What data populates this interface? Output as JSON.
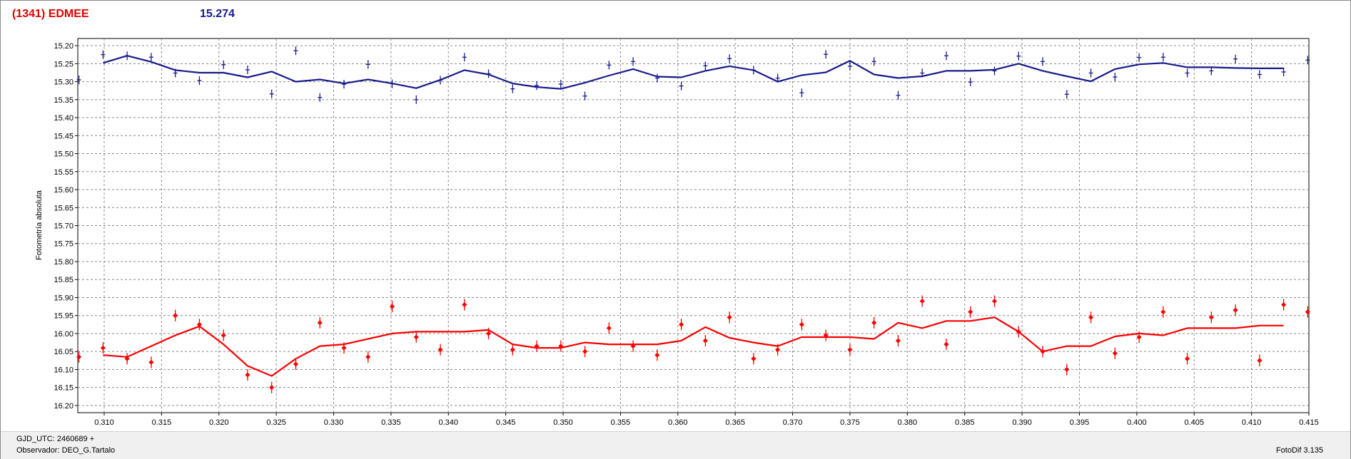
{
  "header": {
    "object_name": "(1341) EDMEE",
    "mean_magnitude": "15.274"
  },
  "footer": {
    "gjd": "GJD_UTC: 2460689 +",
    "observer": "Observador: DEO_G.Tartalo",
    "software": "FotoDif 3.135"
  },
  "colors": {
    "asteroid": "#1a1a8c",
    "comparison": "#ff0000",
    "object_title": "#e00000"
  },
  "chart_data": {
    "type": "scatter",
    "title": "",
    "xlabel": "",
    "ylabel": "Fotometría absoluta",
    "xlim": [
      0.3077,
      0.415
    ],
    "ylim": [
      16.22,
      15.18
    ],
    "y_inverted": true,
    "grid": true,
    "x_ticks": [
      "0.310",
      "0.315",
      "0.320",
      "0.325",
      "0.330",
      "0.335",
      "0.340",
      "0.345",
      "0.350",
      "0.355",
      "0.360",
      "0.365",
      "0.370",
      "0.375",
      "0.380",
      "0.385",
      "0.390",
      "0.395",
      "0.400",
      "0.405",
      "0.410",
      "0.415"
    ],
    "y_ticks": [
      "15.20",
      "15.25",
      "15.30",
      "15.35",
      "15.40",
      "15.45",
      "15.50",
      "15.55",
      "15.60",
      "15.65",
      "15.70",
      "15.75",
      "15.80",
      "15.85",
      "15.90",
      "15.95",
      "16.00",
      "16.05",
      "16.10",
      "16.15",
      "16.20"
    ],
    "series": [
      {
        "role": "asteroid",
        "color": "#1a1a8c",
        "error": 0.012,
        "points": [
          [
            0.3078,
            15.295
          ],
          [
            0.3099,
            15.225
          ],
          [
            0.312,
            15.228
          ],
          [
            0.3141,
            15.232
          ],
          [
            0.3162,
            15.276
          ],
          [
            0.3183,
            15.297
          ],
          [
            0.3204,
            15.253
          ],
          [
            0.3225,
            15.267
          ],
          [
            0.3246,
            15.334
          ],
          [
            0.3267,
            15.214
          ],
          [
            0.3288,
            15.344
          ],
          [
            0.3309,
            15.307
          ],
          [
            0.333,
            15.252
          ],
          [
            0.3351,
            15.306
          ],
          [
            0.3372,
            15.35
          ],
          [
            0.3393,
            15.296
          ],
          [
            0.3414,
            15.232
          ],
          [
            0.3435,
            15.278
          ],
          [
            0.3456,
            15.32
          ],
          [
            0.3477,
            15.311
          ],
          [
            0.3498,
            15.307
          ],
          [
            0.3519,
            15.34
          ],
          [
            0.354,
            15.254
          ],
          [
            0.3561,
            15.244
          ],
          [
            0.3582,
            15.29
          ],
          [
            0.3603,
            15.312
          ],
          [
            0.3624,
            15.256
          ],
          [
            0.3645,
            15.236
          ],
          [
            0.3666,
            15.268
          ],
          [
            0.3687,
            15.29
          ],
          [
            0.3708,
            15.331
          ],
          [
            0.3729,
            15.224
          ],
          [
            0.375,
            15.257
          ],
          [
            0.3771,
            15.244
          ],
          [
            0.3792,
            15.338
          ],
          [
            0.3813,
            15.276
          ],
          [
            0.3834,
            15.228
          ],
          [
            0.3855,
            15.301
          ],
          [
            0.3876,
            15.27
          ],
          [
            0.3897,
            15.229
          ],
          [
            0.3918,
            15.244
          ],
          [
            0.3939,
            15.335
          ],
          [
            0.396,
            15.276
          ],
          [
            0.3981,
            15.287
          ],
          [
            0.4002,
            15.233
          ],
          [
            0.4023,
            15.232
          ],
          [
            0.4044,
            15.276
          ],
          [
            0.4065,
            15.27
          ],
          [
            0.4086,
            15.237
          ],
          [
            0.4107,
            15.28
          ],
          [
            0.4128,
            15.273
          ],
          [
            0.4149,
            15.24
          ]
        ],
        "smooth": [
          [
            0.3099,
            15.248
          ],
          [
            0.312,
            15.228
          ],
          [
            0.3141,
            15.245
          ],
          [
            0.3162,
            15.268
          ],
          [
            0.3183,
            15.275
          ],
          [
            0.3204,
            15.275
          ],
          [
            0.3225,
            15.288
          ],
          [
            0.3246,
            15.272
          ],
          [
            0.3267,
            15.3
          ],
          [
            0.3288,
            15.294
          ],
          [
            0.3309,
            15.305
          ],
          [
            0.333,
            15.294
          ],
          [
            0.3351,
            15.305
          ],
          [
            0.3372,
            15.318
          ],
          [
            0.3393,
            15.295
          ],
          [
            0.3414,
            15.268
          ],
          [
            0.3435,
            15.28
          ],
          [
            0.3456,
            15.305
          ],
          [
            0.3477,
            15.315
          ],
          [
            0.3498,
            15.32
          ],
          [
            0.3519,
            15.303
          ],
          [
            0.354,
            15.283
          ],
          [
            0.3561,
            15.265
          ],
          [
            0.3582,
            15.286
          ],
          [
            0.3603,
            15.288
          ],
          [
            0.3624,
            15.27
          ],
          [
            0.3645,
            15.257
          ],
          [
            0.3666,
            15.268
          ],
          [
            0.3687,
            15.3
          ],
          [
            0.3708,
            15.282
          ],
          [
            0.3729,
            15.274
          ],
          [
            0.375,
            15.242
          ],
          [
            0.3771,
            15.28
          ],
          [
            0.3792,
            15.29
          ],
          [
            0.3813,
            15.285
          ],
          [
            0.3834,
            15.27
          ],
          [
            0.3855,
            15.27
          ],
          [
            0.3876,
            15.267
          ],
          [
            0.3897,
            15.25
          ],
          [
            0.3918,
            15.27
          ],
          [
            0.3939,
            15.285
          ],
          [
            0.396,
            15.299
          ],
          [
            0.3981,
            15.265
          ],
          [
            0.4002,
            15.252
          ],
          [
            0.4023,
            15.248
          ],
          [
            0.4044,
            15.26
          ],
          [
            0.4065,
            15.26
          ],
          [
            0.4086,
            15.262
          ],
          [
            0.4107,
            15.263
          ],
          [
            0.4128,
            15.263
          ]
        ]
      },
      {
        "role": "comparison",
        "color": "#ff0000",
        "error": 0.016,
        "points": [
          [
            0.3078,
            16.065
          ],
          [
            0.3099,
            16.04
          ],
          [
            0.312,
            16.07
          ],
          [
            0.3141,
            16.08
          ],
          [
            0.3162,
            15.95
          ],
          [
            0.3183,
            15.975
          ],
          [
            0.3204,
            16.005
          ],
          [
            0.3225,
            16.115
          ],
          [
            0.3246,
            16.15
          ],
          [
            0.3267,
            16.085
          ],
          [
            0.3288,
            15.97
          ],
          [
            0.3309,
            16.04
          ],
          [
            0.333,
            16.065
          ],
          [
            0.3351,
            15.925
          ],
          [
            0.3372,
            16.01
          ],
          [
            0.3393,
            16.045
          ],
          [
            0.3414,
            15.92
          ],
          [
            0.3435,
            16.0
          ],
          [
            0.3456,
            16.045
          ],
          [
            0.3477,
            16.035
          ],
          [
            0.3498,
            16.035
          ],
          [
            0.3519,
            16.05
          ],
          [
            0.354,
            15.985
          ],
          [
            0.3561,
            16.035
          ],
          [
            0.3582,
            16.06
          ],
          [
            0.3603,
            15.975
          ],
          [
            0.3624,
            16.02
          ],
          [
            0.3645,
            15.955
          ],
          [
            0.3666,
            16.07
          ],
          [
            0.3687,
            16.045
          ],
          [
            0.3708,
            15.975
          ],
          [
            0.3729,
            16.005
          ],
          [
            0.375,
            16.045
          ],
          [
            0.3771,
            15.97
          ],
          [
            0.3792,
            16.02
          ],
          [
            0.3813,
            15.91
          ],
          [
            0.3834,
            16.03
          ],
          [
            0.3855,
            15.94
          ],
          [
            0.3876,
            15.91
          ],
          [
            0.3897,
            15.995
          ],
          [
            0.3918,
            16.05
          ],
          [
            0.3939,
            16.1
          ],
          [
            0.396,
            15.955
          ],
          [
            0.3981,
            16.055
          ],
          [
            0.4002,
            16.01
          ],
          [
            0.4023,
            15.94
          ],
          [
            0.4044,
            16.07
          ],
          [
            0.4065,
            15.955
          ],
          [
            0.4086,
            15.935
          ],
          [
            0.4107,
            16.075
          ],
          [
            0.4128,
            15.92
          ],
          [
            0.4149,
            15.94
          ]
        ],
        "smooth": [
          [
            0.3099,
            16.06
          ],
          [
            0.312,
            16.065
          ],
          [
            0.3141,
            16.035
          ],
          [
            0.3162,
            16.005
          ],
          [
            0.3183,
            15.98
          ],
          [
            0.3204,
            16.03
          ],
          [
            0.3225,
            16.09
          ],
          [
            0.3246,
            16.118
          ],
          [
            0.3267,
            16.07
          ],
          [
            0.3288,
            16.035
          ],
          [
            0.3309,
            16.03
          ],
          [
            0.333,
            16.015
          ],
          [
            0.3351,
            16.0
          ],
          [
            0.3372,
            15.995
          ],
          [
            0.3393,
            15.995
          ],
          [
            0.3414,
            15.995
          ],
          [
            0.3435,
            15.99
          ],
          [
            0.3456,
            16.03
          ],
          [
            0.3477,
            16.04
          ],
          [
            0.3498,
            16.04
          ],
          [
            0.3519,
            16.025
          ],
          [
            0.354,
            16.03
          ],
          [
            0.3561,
            16.03
          ],
          [
            0.3582,
            16.03
          ],
          [
            0.3603,
            16.02
          ],
          [
            0.3624,
            15.982
          ],
          [
            0.3645,
            16.012
          ],
          [
            0.3666,
            16.025
          ],
          [
            0.3687,
            16.035
          ],
          [
            0.3708,
            16.01
          ],
          [
            0.3729,
            16.01
          ],
          [
            0.375,
            16.01
          ],
          [
            0.3771,
            16.015
          ],
          [
            0.3792,
            15.97
          ],
          [
            0.3813,
            15.985
          ],
          [
            0.3834,
            15.965
          ],
          [
            0.3855,
            15.965
          ],
          [
            0.3876,
            15.955
          ],
          [
            0.3897,
            15.995
          ],
          [
            0.3918,
            16.05
          ],
          [
            0.3939,
            16.035
          ],
          [
            0.396,
            16.035
          ],
          [
            0.3981,
            16.008
          ],
          [
            0.4002,
            16.0
          ],
          [
            0.4023,
            16.005
          ],
          [
            0.4044,
            15.985
          ],
          [
            0.4065,
            15.985
          ],
          [
            0.4086,
            15.985
          ],
          [
            0.4107,
            15.978
          ],
          [
            0.4128,
            15.978
          ]
        ]
      }
    ]
  }
}
